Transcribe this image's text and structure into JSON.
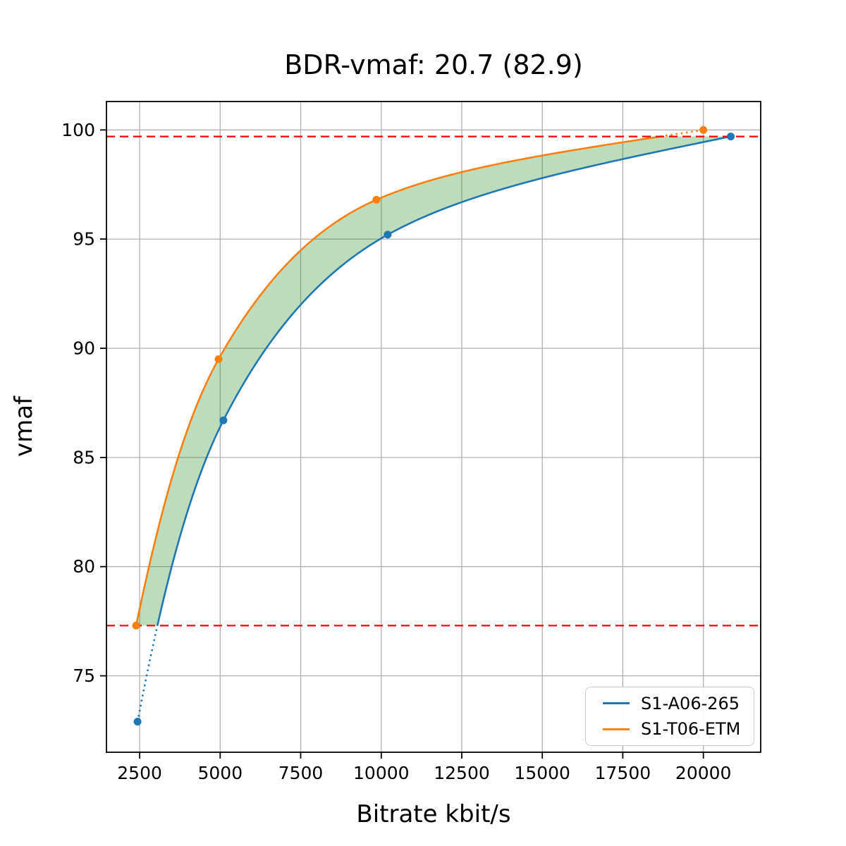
{
  "figure": {
    "title": "BDR-vmaf: 20.7 (82.9)"
  },
  "chart_data": {
    "type": "line",
    "title": "BDR-vmaf: 20.7 (82.9)",
    "xlabel": "Bitrate kbit/s",
    "ylabel": "vmaf",
    "xlim": [
      1470,
      21780
    ],
    "ylim": [
      71.5,
      101.3
    ],
    "x_ticks": [
      2500,
      5000,
      7500,
      10000,
      12500,
      15000,
      17500,
      20000
    ],
    "y_ticks": [
      75,
      80,
      85,
      90,
      95,
      100
    ],
    "grid": true,
    "grid_color": "#b0b0b0",
    "legend_position": "lower right",
    "series": [
      {
        "name": "S1-A06-265",
        "color": "#1f77b4",
        "x": [
          2435,
          5100,
          10200,
          20850
        ],
        "y": [
          72.9,
          86.7,
          95.2,
          99.7
        ]
      },
      {
        "name": "S1-T06-ETM",
        "color": "#ff7f0e",
        "x": [
          2390,
          4950,
          9850,
          20000
        ],
        "y": [
          77.3,
          89.5,
          96.8,
          100.0
        ]
      }
    ],
    "overlap_lines": {
      "lower": 77.3,
      "upper": 99.7,
      "color": "#ff0000",
      "style": "dashed"
    },
    "band_color": "rgba(34,139,34,0.3)",
    "notes": "curves solid inside overlap interval, dotted outside; green band fills area between curves inside overlap"
  }
}
